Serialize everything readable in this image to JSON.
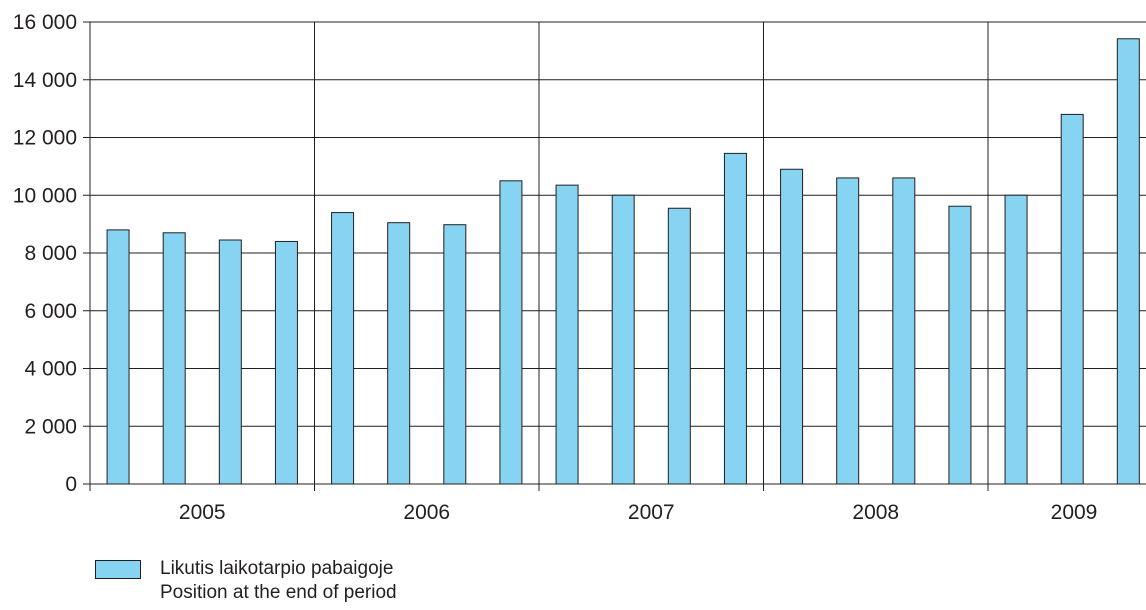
{
  "chart_data": {
    "type": "bar",
    "x": [
      "2005 Q1",
      "2005 Q2",
      "2005 Q3",
      "2005 Q4",
      "2006 Q1",
      "2006 Q2",
      "2006 Q3",
      "2006 Q4",
      "2007 Q1",
      "2007 Q2",
      "2007 Q3",
      "2007 Q4",
      "2008 Q1",
      "2008 Q2",
      "2008 Q3",
      "2008 Q4",
      "2009 Q1",
      "2009 Q2",
      "2009 Q3"
    ],
    "values": [
      8800,
      8700,
      8450,
      8400,
      9400,
      9050,
      8980,
      10500,
      10350,
      10000,
      9550,
      11450,
      10900,
      10600,
      10600,
      9620,
      10000,
      12800,
      15420
    ],
    "year_labels": [
      "2005",
      "2006",
      "2007",
      "2008",
      "2009"
    ],
    "yticks": [
      "0",
      "2 000",
      "4 000",
      "6 000",
      "8 000",
      "10 000",
      "12 000",
      "14 000",
      "16 000"
    ],
    "ylim": [
      0,
      16000
    ],
    "grid": true,
    "bar_color": "#87d3f2",
    "legend": {
      "position": "bottom-left",
      "label_line1": "Likutis laikotarpio pabaigoje",
      "label_line2": "Position at the end of period"
    }
  }
}
